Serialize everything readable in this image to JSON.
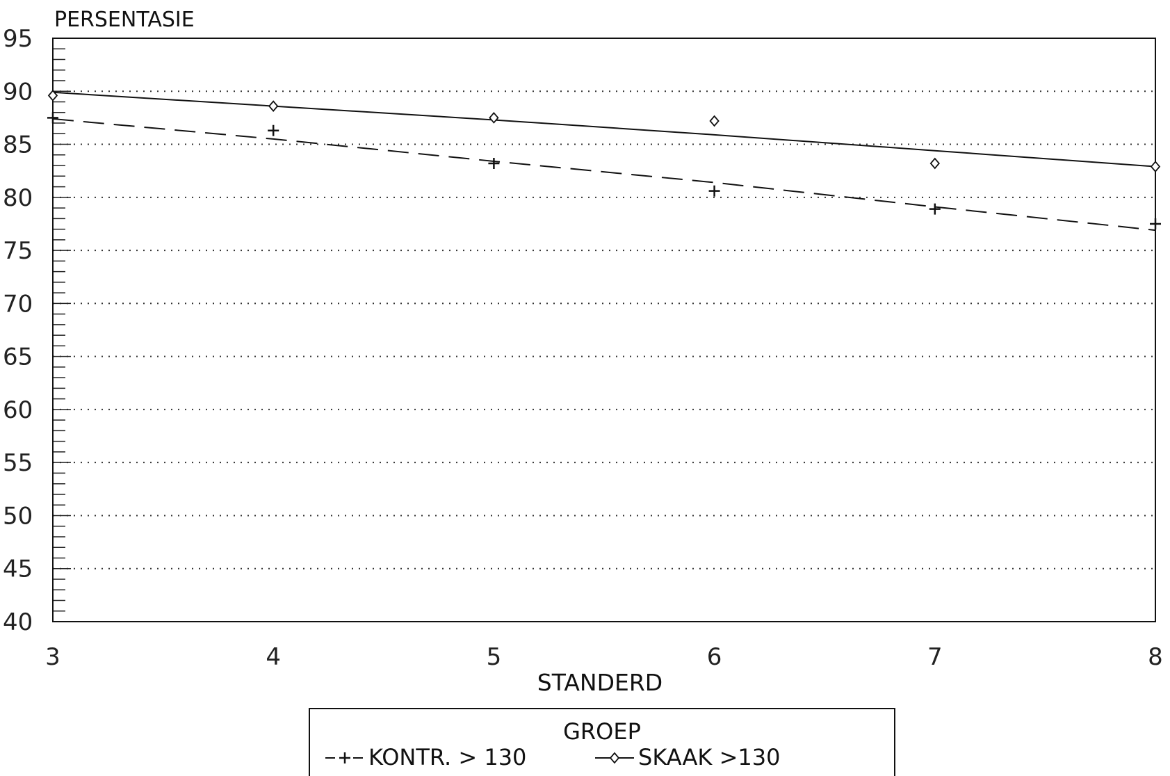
{
  "chart_data": {
    "type": "line",
    "ylabel": "PERSENTASIE",
    "xlabel": "STANDERD",
    "x": [
      3,
      4,
      5,
      6,
      7,
      8
    ],
    "xlim": [
      3,
      8
    ],
    "ylim": [
      40,
      95
    ],
    "y_ticks": [
      40,
      45,
      50,
      55,
      60,
      65,
      70,
      75,
      80,
      85,
      90,
      95
    ],
    "grid": "horizontal dotted",
    "legend": {
      "title": "GROEP",
      "placement": "bottom-center"
    },
    "series": [
      {
        "name": "KONTR. > 130",
        "marker": "plus",
        "trend_style": "dashed",
        "values": [
          87.5,
          86.3,
          83.2,
          80.6,
          78.9,
          77.5
        ],
        "trend": [
          87.4,
          85.5,
          83.4,
          81.4,
          79.1,
          76.9
        ],
        "color": "#111111"
      },
      {
        "name": "SKAAK >130",
        "marker": "diamond",
        "trend_style": "solid",
        "values": [
          89.6,
          88.6,
          87.5,
          87.2,
          83.2,
          82.9
        ],
        "trend": [
          89.9,
          88.6,
          87.3,
          85.9,
          84.4,
          82.9
        ],
        "color": "#111111"
      }
    ]
  }
}
